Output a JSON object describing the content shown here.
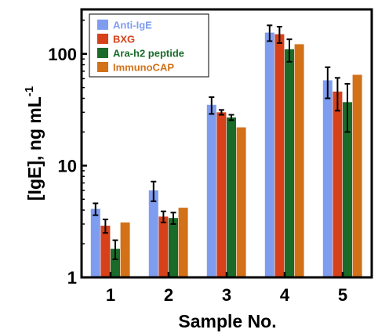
{
  "chart_data": {
    "type": "bar",
    "xlabel": "Sample No.",
    "ylabel": "[IgE], ng mL",
    "ylabel_superscript": "-1",
    "yscale": "log",
    "ylim": [
      1,
      250
    ],
    "yticks": [
      {
        "value": 1,
        "label": "1"
      },
      {
        "value": 10,
        "label": "10"
      },
      {
        "value": 100,
        "label": "100"
      }
    ],
    "categories": [
      "1",
      "2",
      "3",
      "4",
      "5"
    ],
    "legend_position": "top-left",
    "series": [
      {
        "name": "Anti-IgE",
        "color": "#7e9cf0",
        "label_color": "#7e9cf0",
        "values": [
          4.1,
          6.0,
          35,
          155,
          58
        ],
        "errors": [
          0.5,
          1.2,
          6,
          25,
          18
        ]
      },
      {
        "name": "BXG",
        "color": "#d6411a",
        "label_color": "#d6411a",
        "values": [
          2.9,
          3.5,
          30,
          150,
          46
        ],
        "errors": [
          0.4,
          0.4,
          1.5,
          25,
          15
        ]
      },
      {
        "name": "Ara-h2 peptide",
        "color": "#1a6b2a",
        "label_color": "#1a6b2a",
        "values": [
          1.8,
          3.4,
          27,
          110,
          37
        ],
        "errors": [
          0.35,
          0.4,
          1.5,
          25,
          17
        ]
      },
      {
        "name": "ImmunoCAP",
        "color": "#d27118",
        "label_color": "#d27118",
        "values": [
          3.1,
          4.2,
          22,
          122,
          65
        ],
        "errors": [
          0,
          0,
          0,
          0,
          0
        ]
      }
    ]
  }
}
